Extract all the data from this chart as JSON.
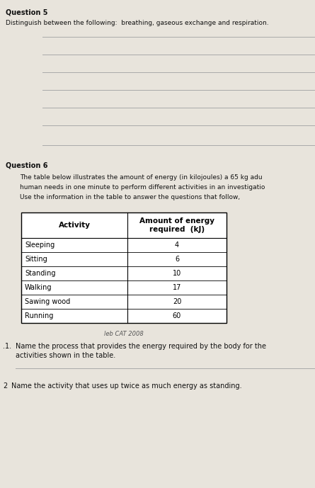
{
  "bg_color": "#e8e4dc",
  "q5_label": "Question 5",
  "q5_text": "Distinguish between the following:  breathing, gaseous exchange and respiration.",
  "q6_label": "Question 6",
  "q6_para_line1": "The table below illustrates the amount of energy (in kilojoules) a 65 kg adu",
  "q6_para_line2": "human needs in one minute to perform different activities in an investigatio",
  "q6_para_line3": "Use the information in the table to answer the questions that follow,",
  "table_header_col1": "Activity",
  "table_header_col2": "Amount of energy\nrequired  (kJ)",
  "table_rows": [
    [
      "Sleeping",
      "4"
    ],
    [
      "Sitting",
      "6"
    ],
    [
      "Standing",
      "10"
    ],
    [
      "Walking",
      "17"
    ],
    [
      "Sawing wood",
      "20"
    ],
    [
      "Running",
      "60"
    ]
  ],
  "table_caption": "leb CAT 2008",
  "q6_q1_num": ".1.",
  "q6_q1_text_line1": "Name the process that provides the energy required by the body for the",
  "q6_q1_text_line2": "activities shown in the table.",
  "q6_q2_num": "2",
  "q6_q2_text": "Name the activity that uses up twice as much energy as standing.",
  "line_color": "#aaaaaa",
  "text_color": "#111111"
}
